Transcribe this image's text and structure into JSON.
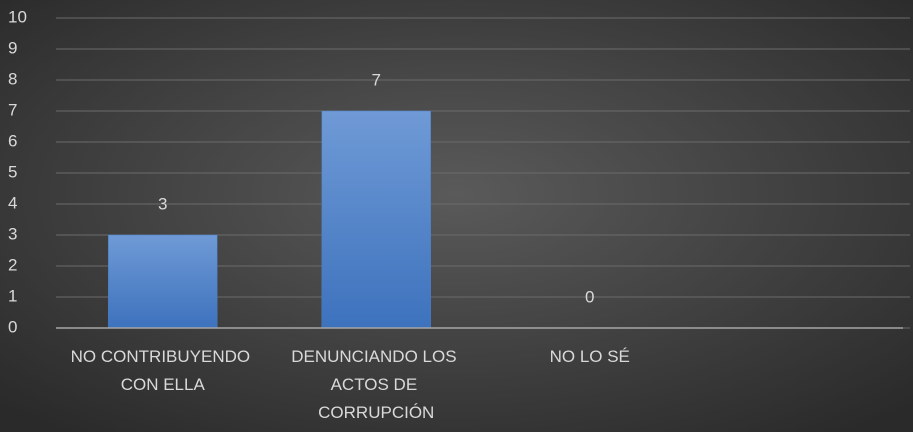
{
  "chart_data": {
    "type": "bar",
    "categories": [
      "NO CONTRIBUYENDO CON ELLA",
      "DENUNCIANDO LOS ACTOS DE CORRUPCIÓN",
      "NO LO SÉ",
      null
    ],
    "values": [
      3,
      7,
      0,
      null
    ],
    "color": "#4a7fc7",
    "ylim": [
      0,
      10
    ],
    "yticks": [
      0,
      1,
      2,
      3,
      4,
      5,
      6,
      7,
      8,
      9,
      10
    ],
    "grid": true
  }
}
